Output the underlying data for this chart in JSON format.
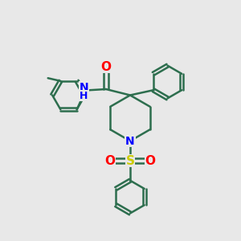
{
  "bg_color": "#e8e8e8",
  "bond_color": "#2d6e4e",
  "bond_width": 1.8,
  "atom_colors": {
    "N": "#0000ff",
    "O": "#ff0000",
    "S": "#cccc00"
  },
  "font_size": 9.5,
  "fig_size": [
    3.0,
    3.0
  ],
  "dpi": 100
}
